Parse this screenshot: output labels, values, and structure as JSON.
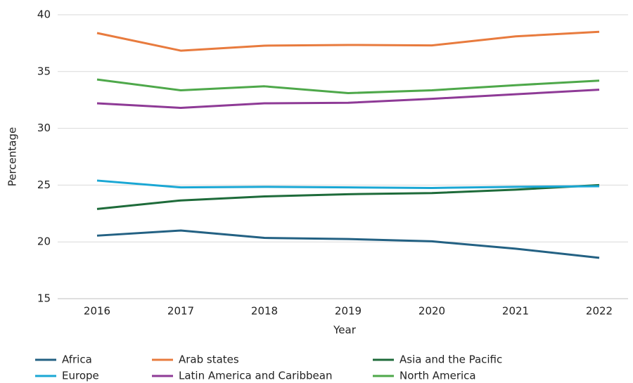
{
  "chart_data": {
    "type": "line",
    "x_label": "Year",
    "y_label": "Percentage",
    "categories": [
      "2016",
      "2017",
      "2018",
      "2019",
      "2020",
      "2021",
      "2022"
    ],
    "series": [
      {
        "name": "Africa",
        "color": "#236183",
        "values": [
          20.55,
          21.0,
          20.35,
          20.25,
          20.05,
          19.4,
          18.6
        ]
      },
      {
        "name": "Arab states",
        "color": "#e87b3e",
        "values": [
          38.39,
          36.84,
          37.28,
          37.34,
          37.3,
          38.1,
          38.5
        ]
      },
      {
        "name": "Asia and the Pacific",
        "color": "#1e6b3a",
        "values": [
          22.9,
          23.65,
          24.0,
          24.2,
          24.3,
          24.6,
          25.0
        ]
      },
      {
        "name": "Europe",
        "color": "#1aa7d4",
        "values": [
          25.4,
          24.8,
          24.85,
          24.8,
          24.75,
          24.85,
          24.9
        ]
      },
      {
        "name": "Latin America and Caribbean",
        "color": "#8e3a96",
        "values": [
          32.2,
          31.8,
          32.2,
          32.25,
          32.6,
          33.0,
          33.4
        ]
      },
      {
        "name": "North America",
        "color": "#4ea84a",
        "values": [
          34.3,
          33.35,
          33.7,
          33.1,
          33.35,
          33.8,
          34.2
        ]
      }
    ],
    "ylim": [
      15,
      40
    ],
    "yticks": [
      15,
      20,
      25,
      30,
      35,
      40
    ],
    "grid": true,
    "legend": "bottom"
  }
}
